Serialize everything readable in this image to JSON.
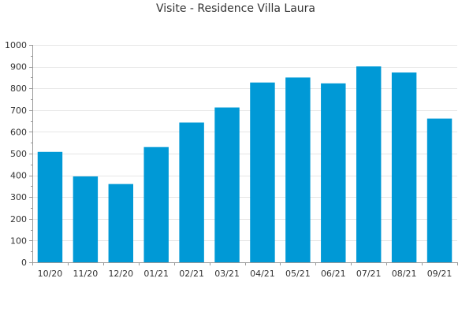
{
  "chart_data": {
    "type": "bar",
    "title": "Visite - Residence Villa Laura",
    "categories": [
      "10/20",
      "11/20",
      "12/20",
      "01/21",
      "02/21",
      "03/21",
      "04/21",
      "05/21",
      "06/21",
      "07/21",
      "08/21",
      "09/21"
    ],
    "values": [
      508,
      395,
      360,
      530,
      643,
      712,
      827,
      850,
      823,
      901,
      873,
      661
    ],
    "ylim": [
      0,
      1000
    ],
    "yticks": [
      0,
      100,
      200,
      300,
      400,
      500,
      600,
      700,
      800,
      900,
      1000
    ],
    "xlabel": "",
    "ylabel": "",
    "grid": true,
    "bar_color": "#0099D6",
    "grid_color": "#E6E6E6",
    "axis_color": "#999999"
  }
}
